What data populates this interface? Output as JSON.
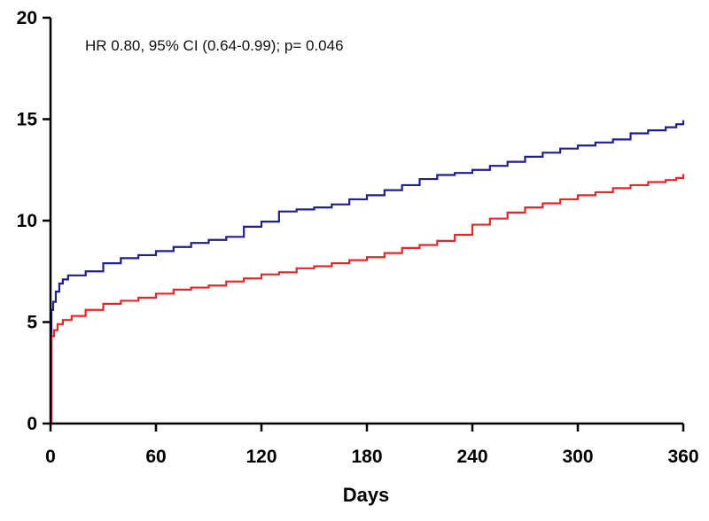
{
  "chart_data": {
    "type": "line",
    "xlabel": "Days",
    "ylabel": "",
    "annotation": "HR 0.80, 95% CI (0.64-0.99); p= 0.046",
    "xlim": [
      0,
      360
    ],
    "ylim": [
      0,
      20
    ],
    "x_ticks": [
      0,
      60,
      120,
      180,
      240,
      300,
      360
    ],
    "y_ticks": [
      0,
      5,
      10,
      15,
      20
    ],
    "grid": false,
    "step": true,
    "colors": {
      "series_1": "#1f1f8f",
      "series_2": "#e8262a",
      "axis": "#000000"
    },
    "series": [
      {
        "color": "#1f1f8f",
        "points": [
          [
            0,
            0
          ],
          [
            0.5,
            5.6
          ],
          [
            1.5,
            6.0
          ],
          [
            3,
            6.5
          ],
          [
            5,
            6.9
          ],
          [
            7,
            7.1
          ],
          [
            10,
            7.3
          ],
          [
            20,
            7.5
          ],
          [
            30,
            7.9
          ],
          [
            40,
            8.15
          ],
          [
            50,
            8.3
          ],
          [
            60,
            8.5
          ],
          [
            70,
            8.7
          ],
          [
            80,
            8.9
          ],
          [
            90,
            9.05
          ],
          [
            100,
            9.2
          ],
          [
            110,
            9.7
          ],
          [
            120,
            9.95
          ],
          [
            130,
            10.45
          ],
          [
            140,
            10.55
          ],
          [
            150,
            10.65
          ],
          [
            160,
            10.8
          ],
          [
            170,
            11.05
          ],
          [
            180,
            11.25
          ],
          [
            190,
            11.5
          ],
          [
            200,
            11.75
          ],
          [
            210,
            12.05
          ],
          [
            220,
            12.25
          ],
          [
            230,
            12.35
          ],
          [
            240,
            12.5
          ],
          [
            250,
            12.7
          ],
          [
            260,
            12.9
          ],
          [
            270,
            13.15
          ],
          [
            280,
            13.35
          ],
          [
            290,
            13.55
          ],
          [
            300,
            13.7
          ],
          [
            310,
            13.85
          ],
          [
            320,
            14.0
          ],
          [
            330,
            14.3
          ],
          [
            340,
            14.45
          ],
          [
            350,
            14.6
          ],
          [
            356,
            14.75
          ],
          [
            360,
            14.95
          ]
        ]
      },
      {
        "color": "#e8262a",
        "points": [
          [
            0,
            0
          ],
          [
            0.5,
            4.3
          ],
          [
            2,
            4.6
          ],
          [
            4,
            4.9
          ],
          [
            7,
            5.1
          ],
          [
            12,
            5.3
          ],
          [
            20,
            5.6
          ],
          [
            30,
            5.9
          ],
          [
            40,
            6.05
          ],
          [
            50,
            6.2
          ],
          [
            60,
            6.4
          ],
          [
            70,
            6.6
          ],
          [
            80,
            6.7
          ],
          [
            90,
            6.8
          ],
          [
            100,
            7.0
          ],
          [
            110,
            7.15
          ],
          [
            120,
            7.35
          ],
          [
            130,
            7.45
          ],
          [
            140,
            7.65
          ],
          [
            150,
            7.75
          ],
          [
            160,
            7.9
          ],
          [
            170,
            8.05
          ],
          [
            180,
            8.2
          ],
          [
            190,
            8.4
          ],
          [
            200,
            8.65
          ],
          [
            210,
            8.8
          ],
          [
            220,
            9.0
          ],
          [
            230,
            9.3
          ],
          [
            240,
            9.8
          ],
          [
            250,
            10.1
          ],
          [
            260,
            10.4
          ],
          [
            270,
            10.65
          ],
          [
            280,
            10.85
          ],
          [
            290,
            11.05
          ],
          [
            300,
            11.25
          ],
          [
            310,
            11.4
          ],
          [
            320,
            11.6
          ],
          [
            330,
            11.75
          ],
          [
            340,
            11.9
          ],
          [
            350,
            12.0
          ],
          [
            356,
            12.1
          ],
          [
            360,
            12.3
          ]
        ]
      }
    ]
  }
}
